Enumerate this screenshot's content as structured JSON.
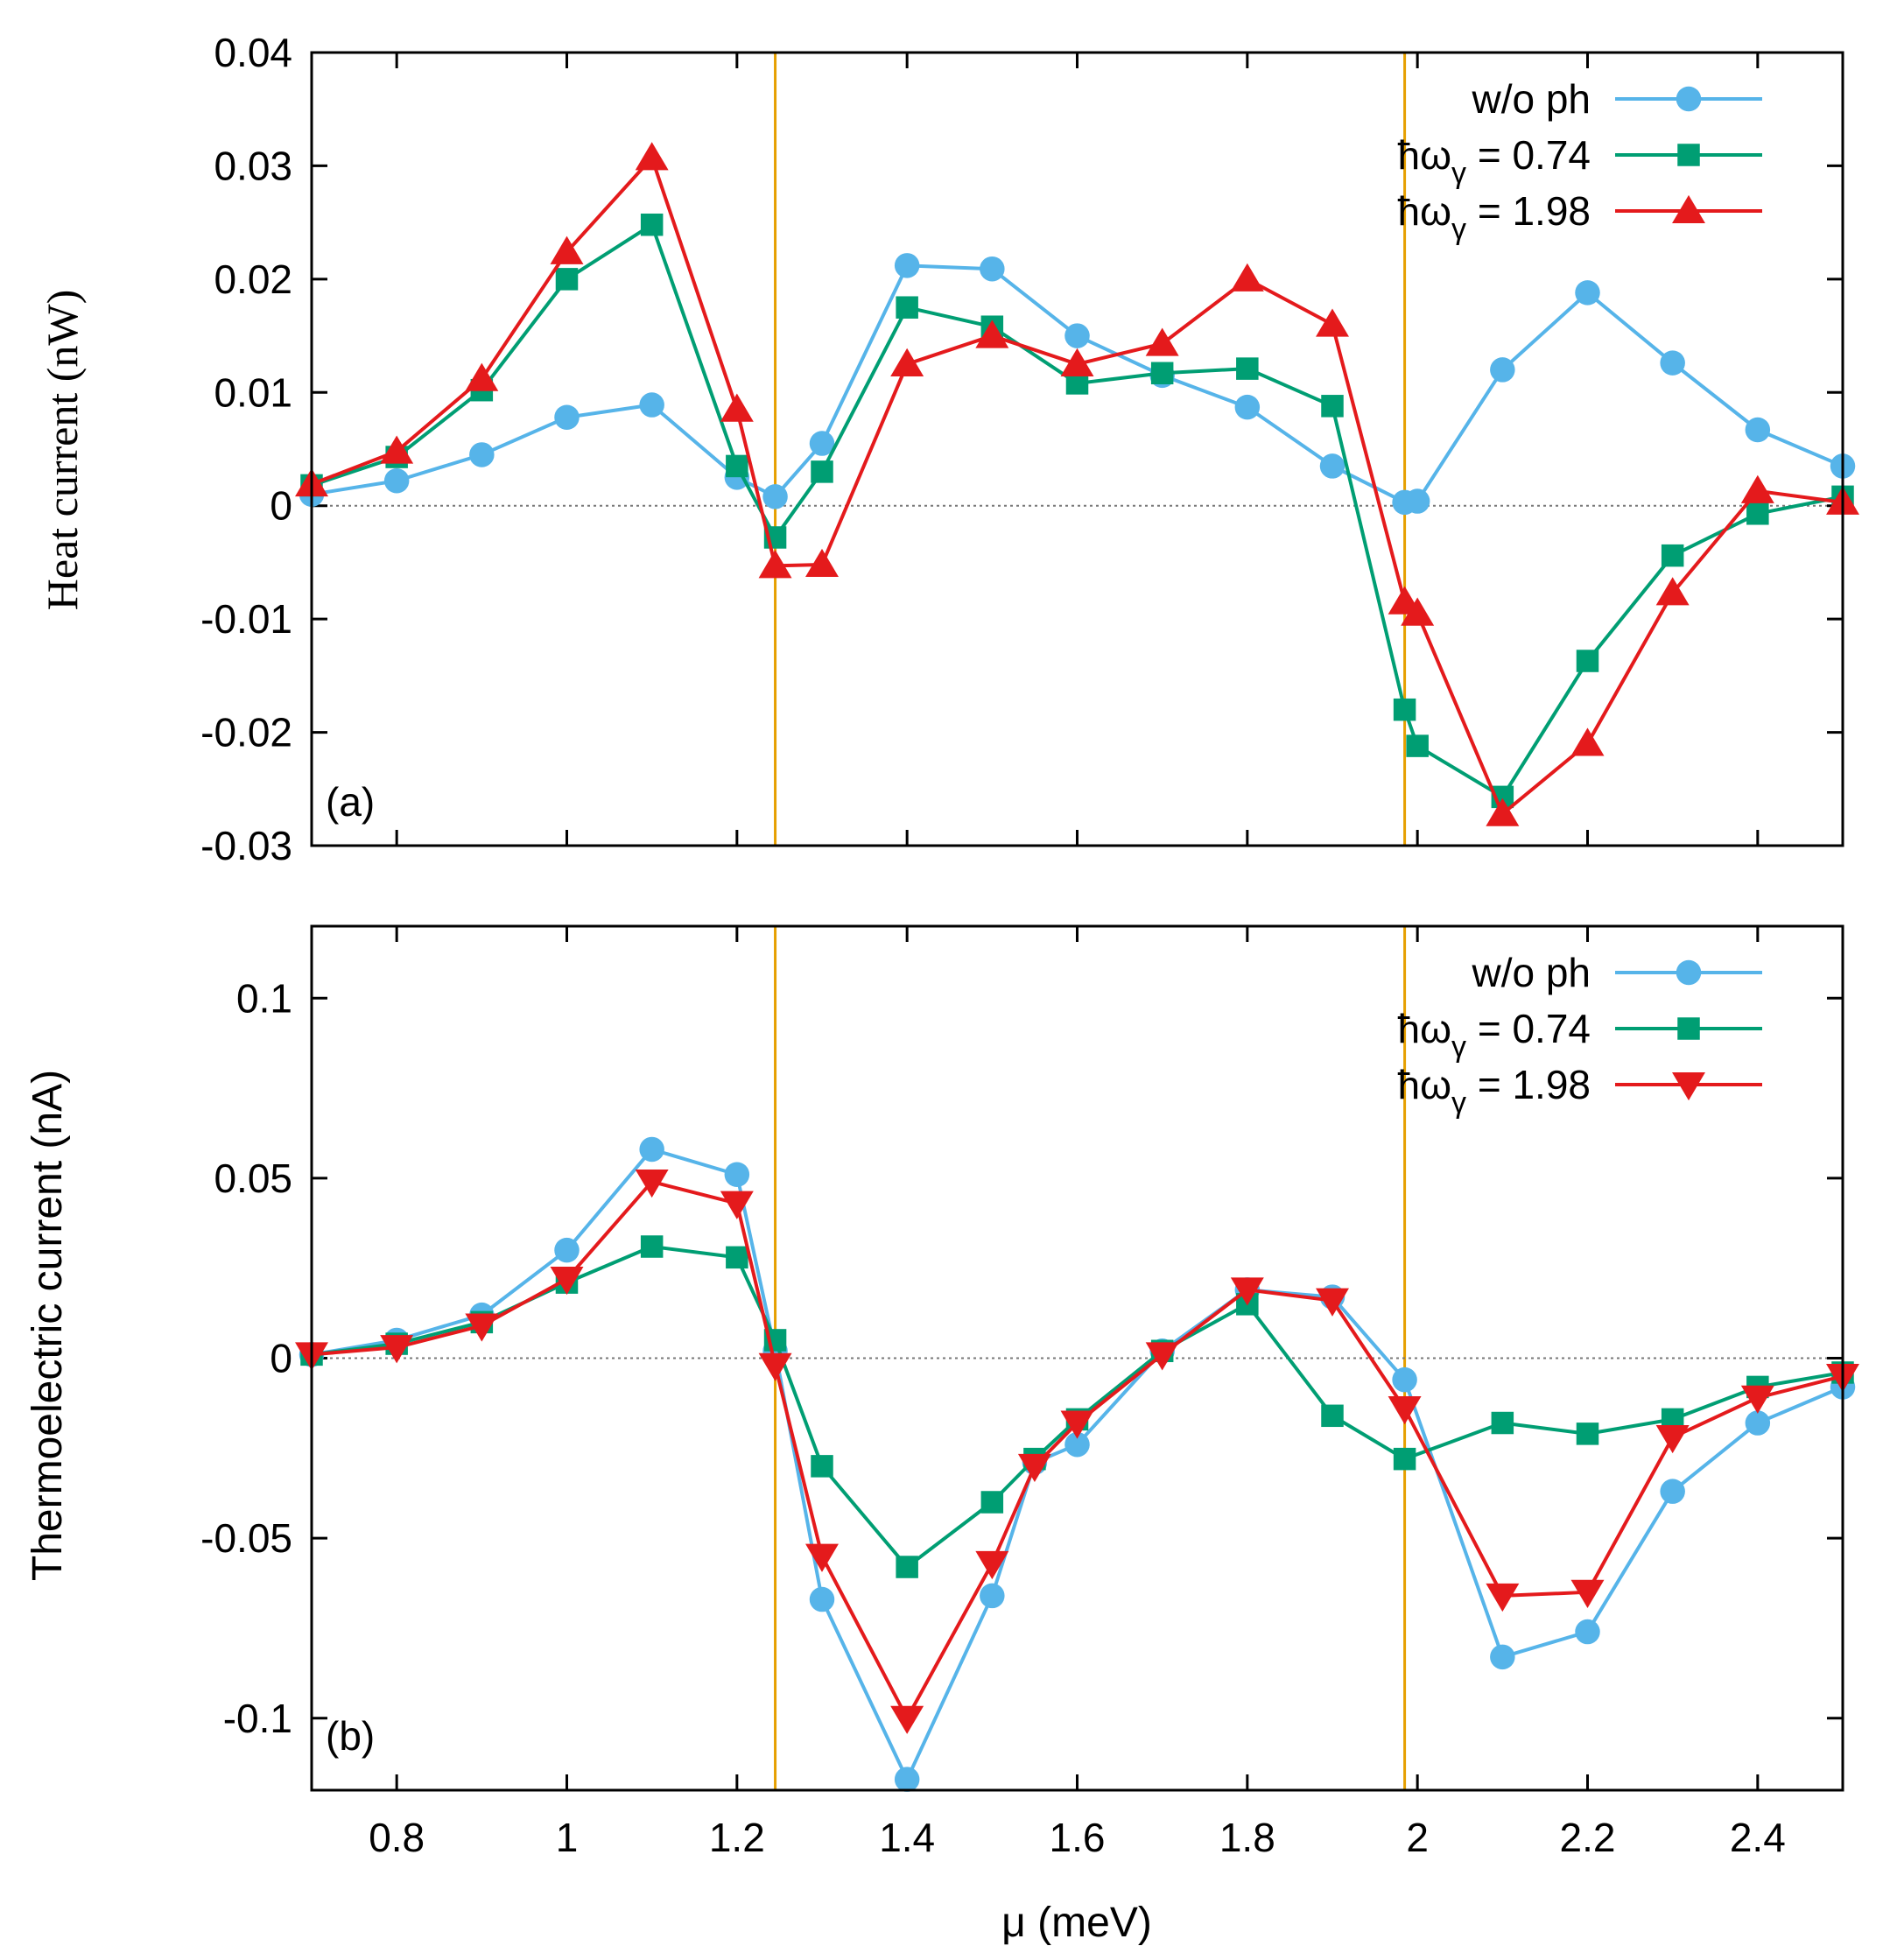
{
  "chart_data": [
    {
      "type": "line",
      "panel_label": "(a)",
      "xlabel": "μ (meV)",
      "ylabel": "Heat current (nW)",
      "xlim": [
        0.7,
        2.5
      ],
      "ylim": [
        -0.03,
        0.04
      ],
      "yticks": [
        -0.03,
        -0.02,
        -0.01,
        0,
        0.01,
        0.02,
        0.03,
        0.04
      ],
      "ytick_labels": [
        "-0.03",
        "-0.02",
        "-0.01",
        "0",
        "0.01",
        "0.02",
        "0.03",
        "0.04"
      ],
      "vlines": [
        1.245,
        1.985
      ],
      "legend_position": "top-right",
      "series": [
        {
          "name": "w/o ph",
          "legend_prefix": "",
          "legend_value": "",
          "marker": "circle",
          "color": "#56b4e9",
          "x": [
            0.7,
            0.8,
            0.9,
            1.0,
            1.1,
            1.2,
            1.245,
            1.3,
            1.4,
            1.5,
            1.6,
            1.7,
            1.8,
            1.9,
            1.985,
            2.0,
            2.1,
            2.2,
            2.3,
            2.4,
            2.5
          ],
          "y": [
            0.001,
            0.0022,
            0.0045,
            0.0078,
            0.0089,
            0.0025,
            0.0008,
            0.0055,
            0.0212,
            0.0209,
            0.015,
            0.0115,
            0.0087,
            0.0035,
            0.0003,
            0.0004,
            0.012,
            0.0188,
            0.0126,
            0.0067,
            0.0035
          ]
        },
        {
          "name": "ħωγ = 0.74",
          "legend_prefix": "ħω",
          "legend_sub": "γ",
          "legend_value": " = 0.74",
          "marker": "square",
          "color": "#009e73",
          "x": [
            0.7,
            0.8,
            0.9,
            1.0,
            1.1,
            1.2,
            1.245,
            1.3,
            1.4,
            1.5,
            1.6,
            1.7,
            1.8,
            1.9,
            1.985,
            2.0,
            2.1,
            2.2,
            2.3,
            2.4,
            2.5
          ],
          "y": [
            0.0018,
            0.0043,
            0.0102,
            0.02,
            0.0248,
            0.0035,
            -0.0028,
            0.003,
            0.0175,
            0.0158,
            0.0108,
            0.0117,
            0.0121,
            0.0088,
            -0.018,
            -0.0212,
            -0.0257,
            -0.0137,
            -0.0044,
            -0.0007,
            0.0008
          ]
        },
        {
          "name": "ħωγ = 1.98",
          "legend_prefix": "ħω",
          "legend_sub": "γ",
          "legend_value": " = 1.98",
          "marker": "triangle-up",
          "color": "#e41a1c",
          "x": [
            0.7,
            0.8,
            0.9,
            1.0,
            1.1,
            1.2,
            1.245,
            1.3,
            1.4,
            1.5,
            1.6,
            1.7,
            1.8,
            1.9,
            1.985,
            2.0,
            2.1,
            2.2,
            2.3,
            2.4,
            2.5
          ],
          "y": [
            0.0019,
            0.0048,
            0.0112,
            0.0224,
            0.0307,
            0.0085,
            -0.0053,
            -0.0052,
            0.0125,
            0.015,
            0.0125,
            0.0143,
            0.02,
            0.016,
            -0.0085,
            -0.0095,
            -0.0272,
            -0.021,
            -0.0077,
            0.0013,
            0.0003
          ]
        }
      ]
    },
    {
      "type": "line",
      "panel_label": "(b)",
      "xlabel": "μ (meV)",
      "ylabel": "Thermoelectric current (nA)",
      "xlim": [
        0.7,
        2.5
      ],
      "ylim": [
        -0.12,
        0.12
      ],
      "yticks": [
        -0.1,
        -0.05,
        0,
        0.05,
        0.1
      ],
      "ytick_labels": [
        "-0.1",
        "-0.05",
        "0",
        "0.05",
        "0.1"
      ],
      "xticks": [
        0.8,
        1.0,
        1.2,
        1.4,
        1.6,
        1.8,
        2.0,
        2.2,
        2.4
      ],
      "xtick_labels": [
        "0.8",
        "1",
        "1.2",
        "1.4",
        "1.6",
        "1.8",
        "2",
        "2.2",
        "2.4"
      ],
      "vlines": [
        1.245,
        1.985
      ],
      "legend_position": "top-right",
      "series": [
        {
          "name": "w/o ph",
          "legend_prefix": "",
          "legend_value": "",
          "marker": "circle",
          "color": "#56b4e9",
          "x": [
            0.7,
            0.8,
            0.9,
            1.0,
            1.1,
            1.2,
            1.245,
            1.3,
            1.4,
            1.5,
            1.55,
            1.6,
            1.7,
            1.8,
            1.9,
            1.985,
            2.1,
            2.2,
            2.3,
            2.4,
            2.5
          ],
          "y": [
            0.001,
            0.005,
            0.012,
            0.03,
            0.058,
            0.051,
            0.002,
            -0.067,
            -0.117,
            -0.066,
            -0.029,
            -0.024,
            0.002,
            0.019,
            0.017,
            -0.006,
            -0.083,
            -0.076,
            -0.037,
            -0.018,
            -0.008
          ]
        },
        {
          "name": "ħωγ = 0.74",
          "legend_prefix": "ħω",
          "legend_sub": "γ",
          "legend_value": " = 0.74",
          "marker": "square",
          "color": "#009e73",
          "x": [
            0.7,
            0.8,
            0.9,
            1.0,
            1.1,
            1.2,
            1.245,
            1.3,
            1.4,
            1.5,
            1.55,
            1.6,
            1.7,
            1.8,
            1.9,
            1.985,
            2.1,
            2.2,
            2.3,
            2.4,
            2.5
          ],
          "y": [
            0.001,
            0.004,
            0.01,
            0.021,
            0.031,
            0.028,
            0.005,
            -0.03,
            -0.058,
            -0.04,
            -0.028,
            -0.017,
            0.002,
            0.015,
            -0.016,
            -0.028,
            -0.018,
            -0.021,
            -0.017,
            -0.008,
            -0.004
          ]
        },
        {
          "name": "ħωγ = 1.98",
          "legend_prefix": "ħω",
          "legend_sub": "γ",
          "legend_value": " = 1.98",
          "marker": "triangle-down",
          "color": "#e41a1c",
          "x": [
            0.7,
            0.8,
            0.9,
            1.0,
            1.1,
            1.2,
            1.245,
            1.3,
            1.4,
            1.5,
            1.55,
            1.6,
            1.7,
            1.8,
            1.9,
            1.985,
            2.1,
            2.2,
            2.3,
            2.4,
            2.5
          ],
          "y": [
            0.001,
            0.003,
            0.009,
            0.022,
            0.049,
            0.043,
            -0.002,
            -0.055,
            -0.1,
            -0.057,
            -0.03,
            -0.018,
            0.001,
            0.019,
            0.016,
            -0.014,
            -0.066,
            -0.065,
            -0.022,
            -0.011,
            -0.005
          ]
        }
      ]
    }
  ]
}
